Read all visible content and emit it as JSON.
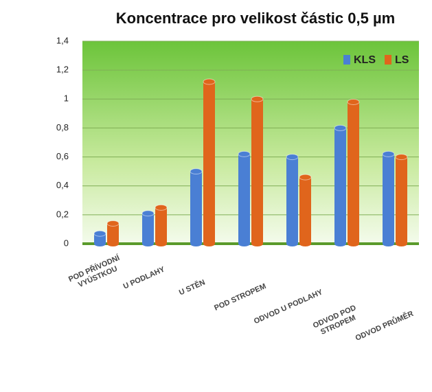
{
  "chart_data": {
    "type": "bar",
    "title": "Koncentrace pro velikost  částic 0,5 µm",
    "categories": [
      "POD PŘÍVODNÍ VYÚSTKOU",
      "U PODLAHY",
      "U STĚN",
      "POD STROPEM",
      "ODVOD U PODLAHY",
      "ODVOD POD STROPEM",
      "ODVOD PRŮMĚR"
    ],
    "series": [
      {
        "name": "KLS",
        "color": "#4a7fd4",
        "values": [
          0.07,
          0.21,
          0.5,
          0.62,
          0.6,
          0.8,
          0.62
        ]
      },
      {
        "name": "LS",
        "color": "#e0651c",
        "values": [
          0.14,
          0.25,
          1.12,
          1.0,
          0.46,
          0.98,
          0.6
        ]
      }
    ],
    "ylim": [
      0,
      1.4
    ],
    "yticks": [
      0,
      {
        "value": 0.2,
        "label": "0,2"
      },
      {
        "value": 0.4,
        "label": "0,4"
      },
      {
        "value": 0.6,
        "label": "0,6"
      },
      {
        "value": 0.8,
        "label": "0,8"
      },
      1,
      {
        "value": 1.2,
        "label": "1,2"
      },
      {
        "value": 1.4,
        "label": "1,4"
      }
    ],
    "grid": true,
    "legend": "top-right"
  }
}
